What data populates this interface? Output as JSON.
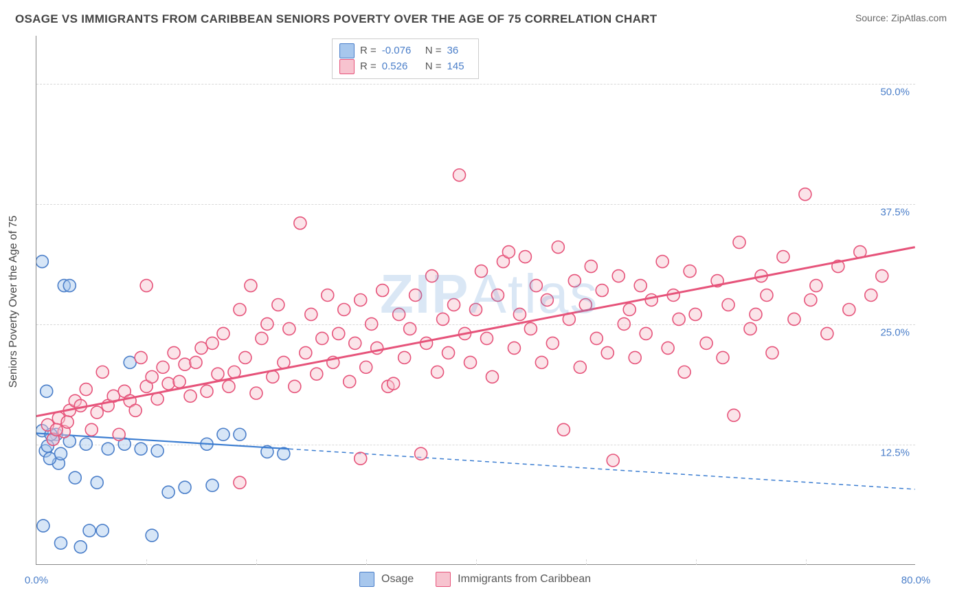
{
  "title": "OSAGE VS IMMIGRANTS FROM CARIBBEAN SENIORS POVERTY OVER THE AGE OF 75 CORRELATION CHART",
  "source": "Source: ZipAtlas.com",
  "y_axis_title": "Seniors Poverty Over the Age of 75",
  "watermark": {
    "bold": "ZIP",
    "rest": "Atlas"
  },
  "chart": {
    "type": "scatter",
    "xlim": [
      0,
      80
    ],
    "ylim": [
      0,
      55
    ],
    "background_color": "#ffffff",
    "grid_color": "#d8d8d8",
    "tick_label_color": "#4a7ec9",
    "tick_fontsize": 15,
    "yticks": [
      12.5,
      25.0,
      37.5,
      50.0
    ],
    "ytick_labels": [
      "12.5%",
      "25.0%",
      "37.5%",
      "50.0%"
    ],
    "xtick_label_left": "0.0%",
    "xtick_label_right": "80.0%",
    "xtick_marks": [
      10,
      20,
      30,
      40,
      50,
      60,
      70
    ],
    "marker_radius": 9,
    "series": [
      {
        "name": "Osage",
        "color_fill": "#a7c7ed",
        "color_stroke": "#4a7ec9",
        "R": "-0.076",
        "N": "36",
        "regression": {
          "x1": -1,
          "y1": 13.7,
          "x2": 23,
          "y2": 12.0,
          "x2_dash": 80,
          "y2_dash": 7.8,
          "color": "#3b7dd1",
          "width": 2.2
        },
        "points": [
          [
            0.5,
            31.5
          ],
          [
            2.2,
            2.2
          ],
          [
            2.5,
            29.0
          ],
          [
            3.0,
            29.0
          ],
          [
            1.8,
            13.5
          ],
          [
            0.8,
            11.8
          ],
          [
            2.0,
            10.5
          ],
          [
            1.2,
            11.0
          ],
          [
            0.5,
            13.9
          ],
          [
            1.5,
            13.0
          ],
          [
            2.2,
            11.5
          ],
          [
            3.5,
            9.0
          ],
          [
            4.8,
            3.5
          ],
          [
            6.0,
            3.5
          ],
          [
            5.5,
            8.5
          ],
          [
            3.0,
            12.8
          ],
          [
            4.5,
            12.5
          ],
          [
            6.5,
            12.0
          ],
          [
            8.0,
            12.5
          ],
          [
            9.5,
            12.0
          ],
          [
            11.0,
            11.8
          ],
          [
            12.0,
            7.5
          ],
          [
            10.5,
            3.0
          ],
          [
            13.5,
            8.0
          ],
          [
            15.5,
            12.5
          ],
          [
            17.0,
            13.5
          ],
          [
            18.5,
            13.5
          ],
          [
            21.0,
            11.7
          ],
          [
            22.5,
            11.5
          ],
          [
            8.5,
            21.0
          ],
          [
            0.6,
            4.0
          ],
          [
            4.0,
            1.8
          ],
          [
            0.9,
            18.0
          ],
          [
            1.3,
            13.5
          ],
          [
            1.0,
            12.3
          ],
          [
            16.0,
            8.2
          ]
        ]
      },
      {
        "name": "Immigrants from Caribbean",
        "color_fill": "#f7c3cf",
        "color_stroke": "#e6537a",
        "R": "0.526",
        "N": "145",
        "regression": {
          "x1": -1,
          "y1": 15.2,
          "x2": 80,
          "y2": 33.0,
          "color": "#e6537a",
          "width": 3.0
        },
        "points": [
          [
            1.0,
            14.5
          ],
          [
            1.5,
            13.0
          ],
          [
            2.0,
            15.2
          ],
          [
            2.5,
            13.8
          ],
          [
            3.0,
            16.0
          ],
          [
            1.8,
            14.0
          ],
          [
            2.8,
            14.8
          ],
          [
            3.5,
            17.0
          ],
          [
            4.0,
            16.5
          ],
          [
            4.5,
            18.2
          ],
          [
            5.0,
            14.0
          ],
          [
            5.5,
            15.8
          ],
          [
            6.0,
            20.0
          ],
          [
            6.5,
            16.5
          ],
          [
            7.0,
            17.5
          ],
          [
            7.5,
            13.5
          ],
          [
            8.0,
            18.0
          ],
          [
            8.5,
            17.0
          ],
          [
            9.0,
            16.0
          ],
          [
            9.5,
            21.5
          ],
          [
            10.0,
            18.5
          ],
          [
            10.5,
            19.5
          ],
          [
            11.0,
            17.2
          ],
          [
            11.5,
            20.5
          ],
          [
            12.0,
            18.8
          ],
          [
            12.5,
            22.0
          ],
          [
            13.0,
            19.0
          ],
          [
            13.5,
            20.8
          ],
          [
            14.0,
            17.5
          ],
          [
            14.5,
            21.0
          ],
          [
            15.0,
            22.5
          ],
          [
            15.5,
            18.0
          ],
          [
            16.0,
            23.0
          ],
          [
            16.5,
            19.8
          ],
          [
            17.0,
            24.0
          ],
          [
            17.5,
            18.5
          ],
          [
            18.0,
            20.0
          ],
          [
            18.5,
            26.5
          ],
          [
            19.0,
            21.5
          ],
          [
            19.5,
            29.0
          ],
          [
            20.0,
            17.8
          ],
          [
            20.5,
            23.5
          ],
          [
            21.0,
            25.0
          ],
          [
            21.5,
            19.5
          ],
          [
            22.0,
            27.0
          ],
          [
            22.5,
            21.0
          ],
          [
            23.0,
            24.5
          ],
          [
            23.5,
            18.5
          ],
          [
            24.0,
            35.5
          ],
          [
            24.5,
            22.0
          ],
          [
            25.0,
            26.0
          ],
          [
            25.5,
            19.8
          ],
          [
            26.0,
            23.5
          ],
          [
            26.5,
            28.0
          ],
          [
            27.0,
            21.0
          ],
          [
            27.5,
            24.0
          ],
          [
            28.0,
            26.5
          ],
          [
            28.5,
            19.0
          ],
          [
            29.0,
            23.0
          ],
          [
            29.5,
            27.5
          ],
          [
            30.0,
            20.5
          ],
          [
            30.5,
            25.0
          ],
          [
            31.0,
            22.5
          ],
          [
            31.5,
            28.5
          ],
          [
            32.0,
            18.5
          ],
          [
            32.5,
            18.8
          ],
          [
            33.0,
            26.0
          ],
          [
            33.5,
            21.5
          ],
          [
            34.0,
            24.5
          ],
          [
            34.5,
            28.0
          ],
          [
            35.0,
            11.5
          ],
          [
            35.5,
            23.0
          ],
          [
            36.0,
            30.0
          ],
          [
            36.5,
            20.0
          ],
          [
            37.0,
            25.5
          ],
          [
            37.5,
            22.0
          ],
          [
            38.0,
            27.0
          ],
          [
            38.5,
            40.5
          ],
          [
            39.0,
            24.0
          ],
          [
            39.5,
            21.0
          ],
          [
            40.0,
            26.5
          ],
          [
            40.5,
            30.5
          ],
          [
            41.0,
            23.5
          ],
          [
            41.5,
            19.5
          ],
          [
            42.0,
            28.0
          ],
          [
            42.5,
            31.5
          ],
          [
            43.0,
            32.5
          ],
          [
            43.5,
            22.5
          ],
          [
            44.0,
            26.0
          ],
          [
            44.5,
            32.0
          ],
          [
            45.0,
            24.5
          ],
          [
            45.5,
            29.0
          ],
          [
            46.0,
            21.0
          ],
          [
            46.5,
            27.5
          ],
          [
            47.0,
            23.0
          ],
          [
            47.5,
            33.0
          ],
          [
            48.0,
            14.0
          ],
          [
            48.5,
            25.5
          ],
          [
            49.0,
            29.5
          ],
          [
            49.5,
            20.5
          ],
          [
            50.0,
            27.0
          ],
          [
            50.5,
            31.0
          ],
          [
            51.0,
            23.5
          ],
          [
            51.5,
            28.5
          ],
          [
            52.0,
            22.0
          ],
          [
            52.5,
            10.8
          ],
          [
            53.0,
            30.0
          ],
          [
            53.5,
            25.0
          ],
          [
            54.0,
            26.5
          ],
          [
            54.5,
            21.5
          ],
          [
            55.0,
            29.0
          ],
          [
            55.5,
            24.0
          ],
          [
            56.0,
            27.5
          ],
          [
            57.0,
            31.5
          ],
          [
            57.5,
            22.5
          ],
          [
            58.0,
            28.0
          ],
          [
            58.5,
            25.5
          ],
          [
            59.0,
            20.0
          ],
          [
            59.5,
            30.5
          ],
          [
            60.0,
            26.0
          ],
          [
            61.0,
            23.0
          ],
          [
            62.0,
            29.5
          ],
          [
            62.5,
            21.5
          ],
          [
            63.0,
            27.0
          ],
          [
            63.5,
            15.5
          ],
          [
            64.0,
            33.5
          ],
          [
            65.0,
            24.5
          ],
          [
            65.5,
            26.0
          ],
          [
            66.0,
            30.0
          ],
          [
            66.5,
            28.0
          ],
          [
            67.0,
            22.0
          ],
          [
            68.0,
            32.0
          ],
          [
            69.0,
            25.5
          ],
          [
            70.0,
            38.5
          ],
          [
            70.5,
            27.5
          ],
          [
            71.0,
            29.0
          ],
          [
            72.0,
            24.0
          ],
          [
            73.0,
            31.0
          ],
          [
            74.0,
            26.5
          ],
          [
            75.0,
            32.5
          ],
          [
            76.0,
            28.0
          ],
          [
            77.0,
            30.0
          ],
          [
            29.5,
            11.0
          ],
          [
            18.5,
            8.5
          ],
          [
            10.0,
            29.0
          ]
        ]
      }
    ]
  },
  "legend_bottom": [
    {
      "swatch_fill": "#a7c7ed",
      "swatch_stroke": "#4a7ec9",
      "label": "Osage"
    },
    {
      "swatch_fill": "#f7c3cf",
      "swatch_stroke": "#e6537a",
      "label": "Immigrants from Caribbean"
    }
  ],
  "legend_rn_rows": [
    {
      "swatch_fill": "#a7c7ed",
      "swatch_stroke": "#4a7ec9",
      "R": "-0.076",
      "N": "36"
    },
    {
      "swatch_fill": "#f7c3cf",
      "swatch_stroke": "#e6537a",
      "R": "0.526",
      "N": "145"
    }
  ]
}
